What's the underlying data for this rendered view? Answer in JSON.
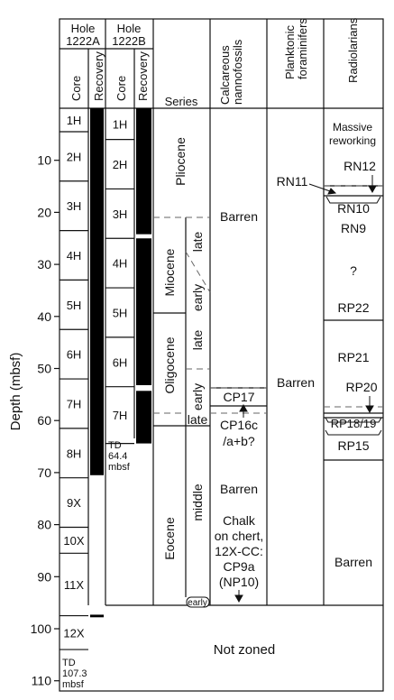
{
  "depth_axis": {
    "label": "Depth (mbsf)",
    "ticks": [
      10,
      20,
      30,
      40,
      50,
      60,
      70,
      80,
      90,
      100,
      110
    ]
  },
  "holes": {
    "a": {
      "title_1": "Hole",
      "title_2": "1222A"
    },
    "b": {
      "title_1": "Hole",
      "title_2": "1222B"
    }
  },
  "column_headers": {
    "core_a": "Core",
    "recovery_a": "Recovery",
    "core_b": "Core",
    "recovery_b": "Recovery",
    "series": "Series",
    "nanno_1": "Calcareous",
    "nanno_2": "nannofossils",
    "forams_1": "Planktonic",
    "forams_2": "foraminifers",
    "rads": "Radiolarians"
  },
  "cores_a": [
    {
      "label": "1H",
      "top": 0,
      "bottom": 4.5
    },
    {
      "label": "2H",
      "top": 4.5,
      "bottom": 14
    },
    {
      "label": "3H",
      "top": 14,
      "bottom": 23.5
    },
    {
      "label": "4H",
      "top": 23.5,
      "bottom": 33
    },
    {
      "label": "5H",
      "top": 33,
      "bottom": 42.5
    },
    {
      "label": "6H",
      "top": 42.5,
      "bottom": 52
    },
    {
      "label": "7H",
      "top": 52,
      "bottom": 61.5
    },
    {
      "label": "8H",
      "top": 61.5,
      "bottom": 71
    },
    {
      "label": "9X",
      "top": 71,
      "bottom": 80.5
    },
    {
      "label": "10X",
      "top": 80.5,
      "bottom": 85.5
    },
    {
      "label": "11X",
      "top": 85.5,
      "bottom": 97.5
    },
    {
      "label": "12X",
      "top": 97.5,
      "bottom": 104
    }
  ],
  "recovery_a": [
    {
      "top": 0,
      "bottom": 70.5
    },
    {
      "top": 97.3,
      "bottom": 97.8
    }
  ],
  "td_a": {
    "line_1": "TD",
    "line_2": "107.3",
    "line_3": "mbsf"
  },
  "cores_b": [
    {
      "label": "1H",
      "top": 0,
      "bottom": 6
    },
    {
      "label": "2H",
      "top": 6,
      "bottom": 15.5
    },
    {
      "label": "3H",
      "top": 15.5,
      "bottom": 25
    },
    {
      "label": "4H",
      "top": 25,
      "bottom": 34.5
    },
    {
      "label": "5H",
      "top": 34.5,
      "bottom": 44
    },
    {
      "label": "6H",
      "top": 44,
      "bottom": 53.5
    },
    {
      "label": "7H",
      "top": 53.5,
      "bottom": 64.4
    }
  ],
  "recovery_b": [
    {
      "top": 0,
      "bottom": 24.2
    },
    {
      "top": 25,
      "bottom": 53.2
    },
    {
      "top": 54.3,
      "bottom": 64.4
    }
  ],
  "td_b": {
    "line_1": "TD",
    "line_2": "64.4",
    "line_3": "mbsf"
  },
  "series": {
    "pliocene": "Pliocene",
    "miocene": "Miocene",
    "oligocene": "Oligocene",
    "eocene": "Eocene",
    "late": "late",
    "early": "early",
    "middle": "middle",
    "early_eocene": "early"
  },
  "nanno": {
    "barren_top": "Barren",
    "cp17": "CP17",
    "cp16c_1": "CP16c",
    "cp16c_2": "/a+b?",
    "barren_mid": "Barren",
    "chalk_1": "Chalk",
    "chalk_2": "on chert,",
    "chalk_3": "12X-CC:",
    "chalk_4": "CP9a",
    "chalk_5": "(NP10)"
  },
  "forams": {
    "barren": "Barren",
    "rn11": "RN11"
  },
  "rads": {
    "massive_1": "Massive",
    "massive_2": "reworking",
    "rn12": "RN12",
    "rn10": "RN10",
    "rn9": "RN9",
    "q": "?",
    "rp22": "RP22",
    "rp21": "RP21",
    "rp20": "RP20",
    "rp1819": "RP18/19",
    "rp15": "RP15",
    "barren": "Barren"
  },
  "not_zoned": "Not zoned"
}
